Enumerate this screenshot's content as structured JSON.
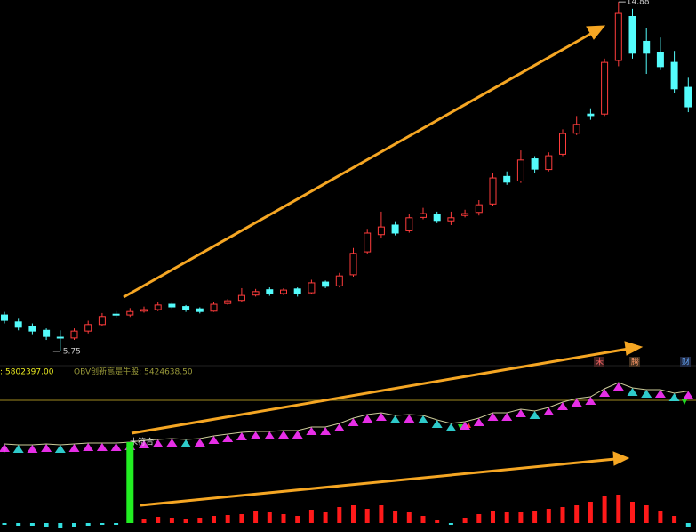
{
  "chart_data": [
    {
      "type": "candlestick",
      "ylim": [
        5.4,
        14.93
      ],
      "up_color": "#ff3c3c",
      "down_color": "#54fcfc",
      "open": [
        6.7,
        6.52,
        6.4,
        6.3,
        6.12,
        6.1,
        6.28,
        6.45,
        6.72,
        6.7,
        6.8,
        6.84,
        6.98,
        6.92,
        6.86,
        6.8,
        7.0,
        7.08,
        7.22,
        7.36,
        7.26,
        7.38,
        7.28,
        7.56,
        7.46,
        7.75,
        8.35,
        8.8,
        9.05,
        8.9,
        9.25,
        9.34,
        9.16,
        9.3,
        9.38,
        9.6,
        10.32,
        10.2,
        10.78,
        10.5,
        10.9,
        11.45,
        11.95,
        11.95,
        13.35,
        14.5,
        13.85,
        13.55,
        13.3,
        12.65
      ],
      "high": [
        6.78,
        6.6,
        6.48,
        6.35,
        6.3,
        6.35,
        6.55,
        6.75,
        6.8,
        6.88,
        6.92,
        7.05,
        7.02,
        6.96,
        6.9,
        7.05,
        7.12,
        7.4,
        7.38,
        7.42,
        7.4,
        7.42,
        7.62,
        7.6,
        7.8,
        8.45,
        8.95,
        9.4,
        9.15,
        9.35,
        9.5,
        9.4,
        9.4,
        9.45,
        9.7,
        10.4,
        10.45,
        11.0,
        10.85,
        10.95,
        11.55,
        11.9,
        12.1,
        13.4,
        14.88,
        14.7,
        14.2,
        13.95,
        13.6,
        12.9
      ],
      "low": [
        6.48,
        6.3,
        6.2,
        6.05,
        5.75,
        6.05,
        6.22,
        6.4,
        6.62,
        6.65,
        6.76,
        6.8,
        6.86,
        6.78,
        6.74,
        6.78,
        6.96,
        7.05,
        7.18,
        7.2,
        7.22,
        7.18,
        7.25,
        7.4,
        7.42,
        7.7,
        8.3,
        8.7,
        8.78,
        8.85,
        9.2,
        9.1,
        9.05,
        9.25,
        9.3,
        9.55,
        10.1,
        10.15,
        10.4,
        10.45,
        10.85,
        11.4,
        11.8,
        11.9,
        13.2,
        13.4,
        13.0,
        13.1,
        12.5,
        12.0
      ],
      "close": [
        6.56,
        6.38,
        6.28,
        6.14,
        6.1,
        6.28,
        6.45,
        6.66,
        6.7,
        6.79,
        6.84,
        6.96,
        6.91,
        6.84,
        6.79,
        6.98,
        7.07,
        7.21,
        7.31,
        7.26,
        7.35,
        7.26,
        7.54,
        7.45,
        7.72,
        8.31,
        8.84,
        9.0,
        8.84,
        9.24,
        9.35,
        9.17,
        9.24,
        9.35,
        9.58,
        10.28,
        10.17,
        10.75,
        10.51,
        10.86,
        11.44,
        11.68,
        11.91,
        13.3,
        14.58,
        13.54,
        13.54,
        13.19,
        12.61,
        12.14
      ],
      "marked_high": 14.88,
      "marked_low": 5.75
    },
    {
      "type": "line",
      "ylim": [
        4300000,
        5900000
      ],
      "up_color": "#ff33ff",
      "down_color": "#33e0e0",
      "line_color": "#cccc99",
      "legend": [
        {
          "name": ":",
          "value": 5802397,
          "value_label": "5802397.00",
          "color": "#e8e820"
        },
        {
          "name": "OBV创新高是牛股:",
          "value": 5424638.5,
          "value_label": "5424638.50",
          "color": "#9a9a3a"
        }
      ],
      "values": [
        4403000,
        4386000,
        4386000,
        4403000,
        4386000,
        4403000,
        4420000,
        4420000,
        4420000,
        4438000,
        4472000,
        4489000,
        4506000,
        4489000,
        4506000,
        4558000,
        4592000,
        4627000,
        4644000,
        4644000,
        4661000,
        4661000,
        4730000,
        4730000,
        4799000,
        4902000,
        4971000,
        5005000,
        4954000,
        4971000,
        4954000,
        4868000,
        4799000,
        4833000,
        4902000,
        5005000,
        5005000,
        5074000,
        5040000,
        5109000,
        5212000,
        5281000,
        5315000,
        5470000,
        5590000,
        5487000,
        5453000,
        5453000,
        5384000,
        5424638.5
      ],
      "annotations": [
        "未符合",
        "未",
        "腾",
        "财"
      ]
    },
    {
      "type": "bar",
      "ylim": [
        -10,
        100
      ],
      "pos_color": "#ff1a1a",
      "neg_color": "#33e0e0",
      "highlight_index": 9,
      "highlight_color": "#22ee22",
      "values": [
        -2,
        -3,
        -3,
        -4,
        -5,
        -4,
        -3,
        -2,
        -2,
        91,
        5,
        7,
        6,
        5,
        6,
        8,
        9,
        10,
        14,
        12,
        10,
        8,
        15,
        12,
        18,
        20,
        16,
        20,
        14,
        12,
        8,
        4,
        -2,
        6,
        10,
        14,
        12,
        12,
        14,
        16,
        18,
        20,
        24,
        30,
        32,
        24,
        20,
        14,
        8,
        -4
      ]
    }
  ]
}
